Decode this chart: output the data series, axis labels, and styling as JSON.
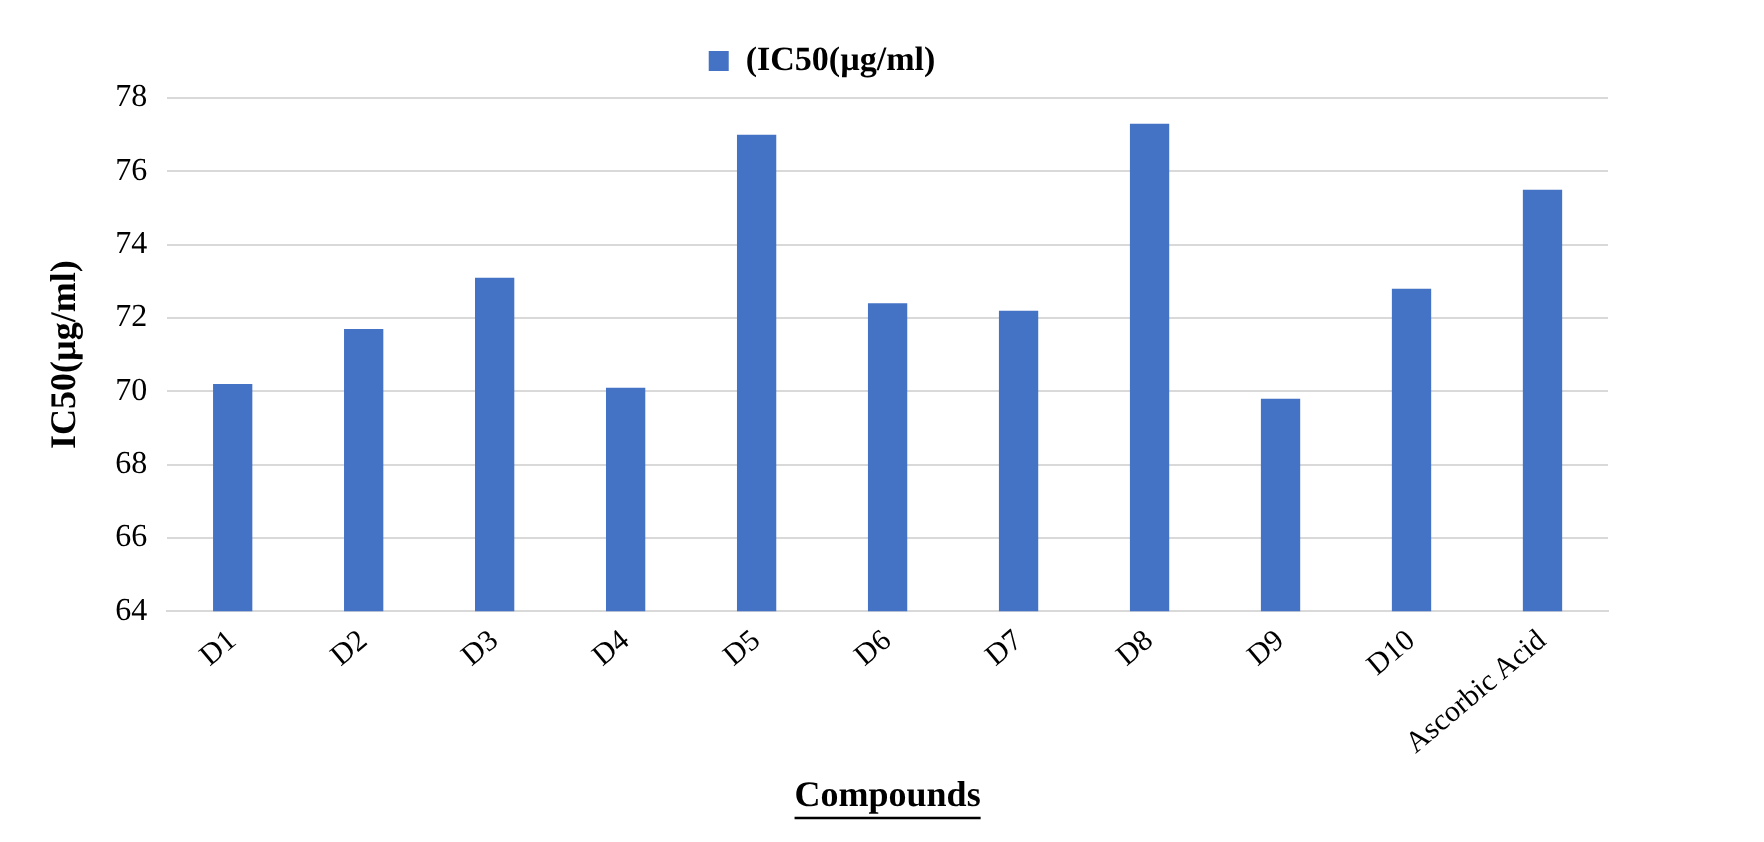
{
  "chart_data": {
    "type": "bar",
    "xlabel": "Compounds",
    "ylabel": "IC50(µg/ml)",
    "categories": [
      "D1",
      "D2",
      "D3",
      "D4",
      "D5",
      "D6",
      "D7",
      "D8",
      "D9",
      "D10",
      "Ascorbic Acid"
    ],
    "series": [
      {
        "name": "(IC50(µg/ml)",
        "color": "#4472c4",
        "values": [
          70.2,
          71.7,
          73.1,
          70.1,
          77.0,
          72.4,
          72.2,
          77.3,
          69.8,
          72.8,
          75.5
        ]
      }
    ],
    "ylim": [
      64,
      78
    ],
    "yticks": [
      64,
      66,
      68,
      70,
      72,
      74,
      76,
      78
    ],
    "grid": "y",
    "legend": "top"
  }
}
